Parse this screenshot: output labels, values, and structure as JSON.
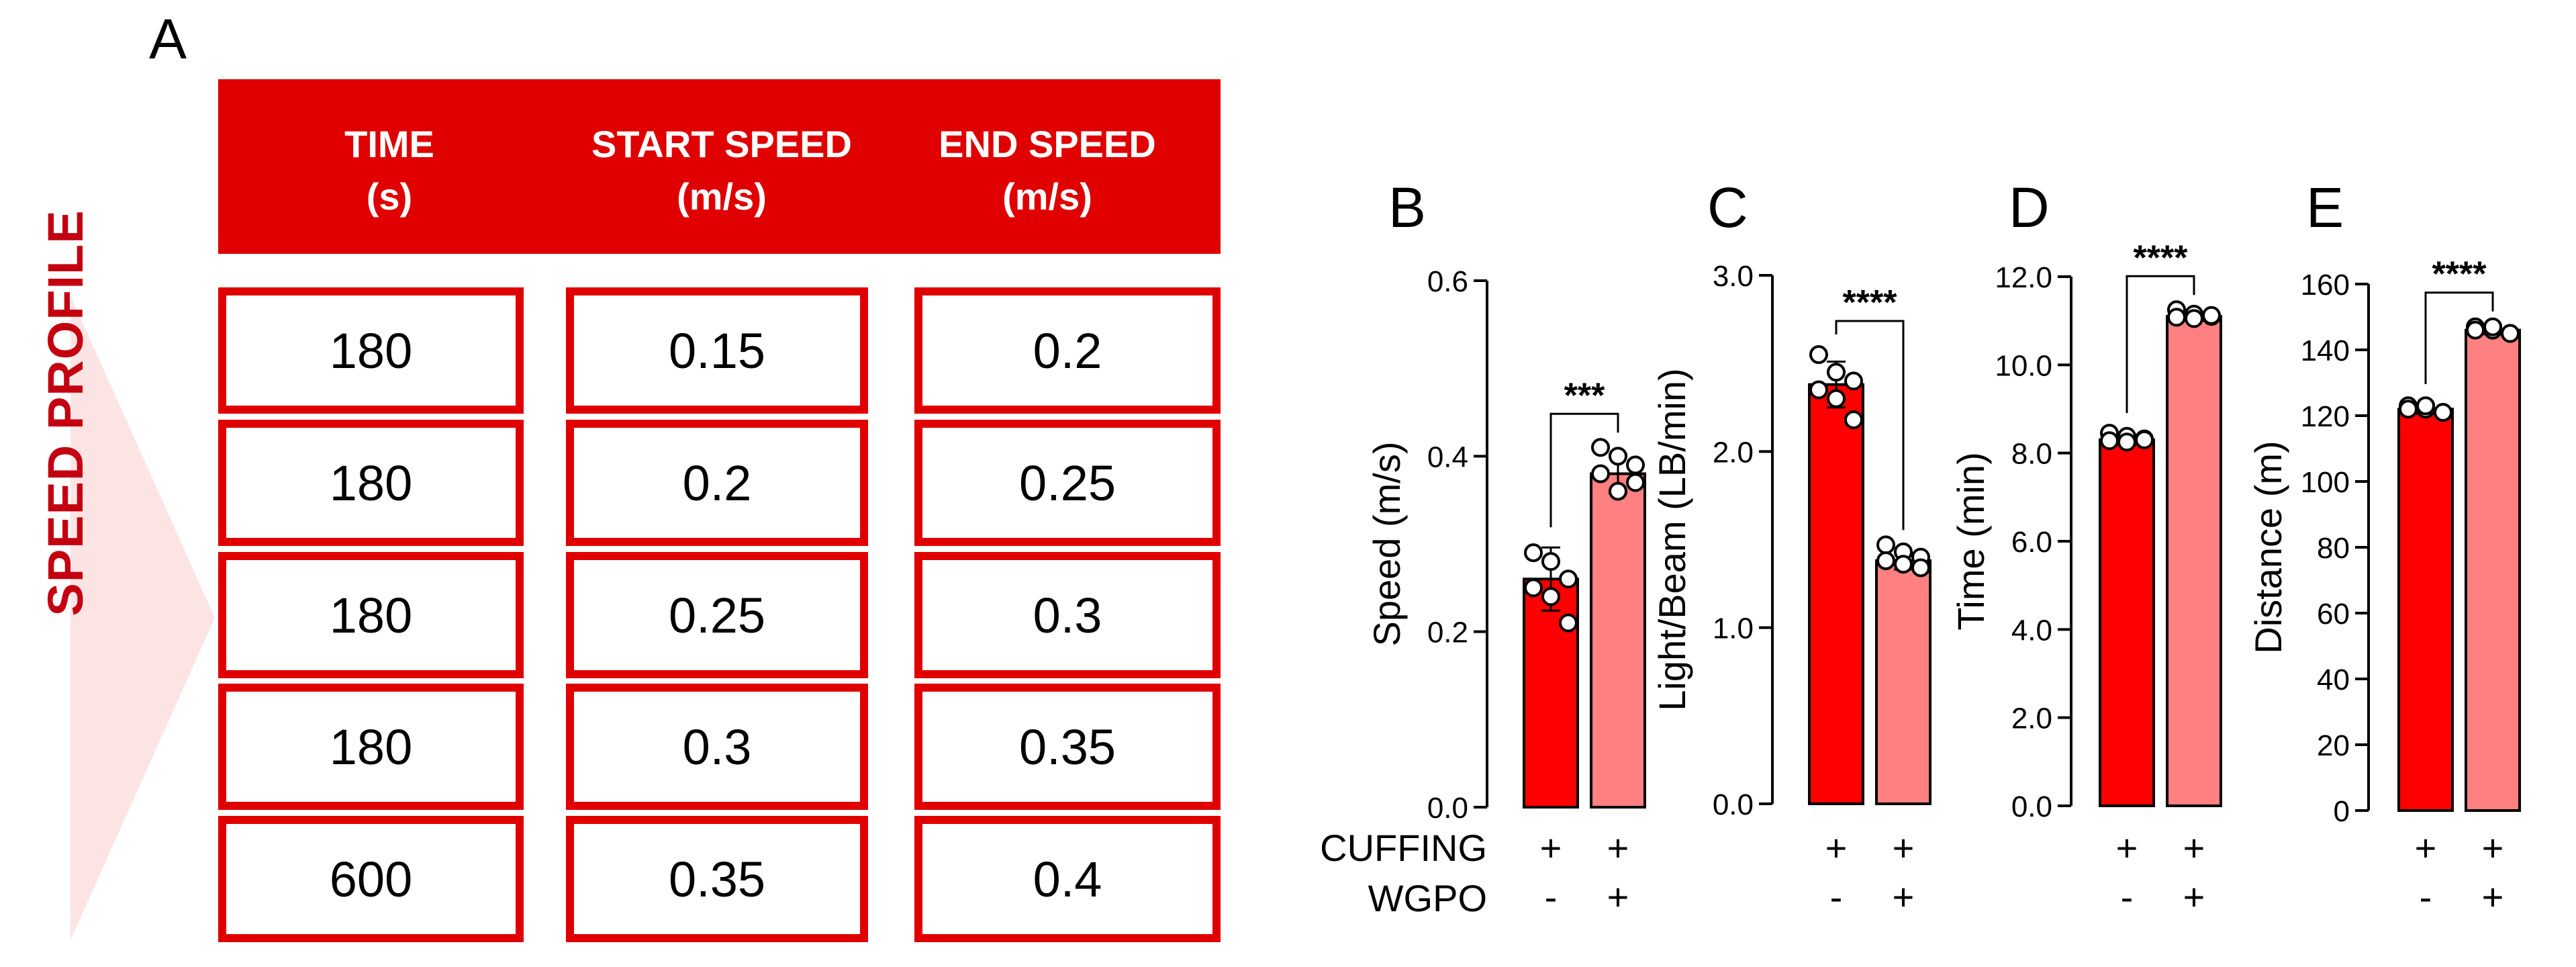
{
  "panels": {
    "a": "A",
    "b": "B",
    "c": "C",
    "d": "D",
    "e": "E"
  },
  "table": {
    "side_label": "SPEED PROFILE",
    "headers": [
      "TIME\n(s)",
      "START SPEED\n(m/s)",
      "END SPEED\n(m/s)"
    ],
    "rows": [
      [
        "180",
        "0.15",
        "0.2"
      ],
      [
        "180",
        "0.2",
        "0.25"
      ],
      [
        "180",
        "0.25",
        "0.3"
      ],
      [
        "180",
        "0.3",
        "0.35"
      ],
      [
        "600",
        "0.35",
        "0.4"
      ]
    ]
  },
  "colors": {
    "red": "#e00000",
    "dark_red": "#c40010",
    "bar_1": "#ff0000",
    "bar_2": "#ff8080",
    "triangle": "#fde4e4"
  },
  "conditions": {
    "row_labels": [
      "CUFFING",
      "WGPO"
    ],
    "cuffing": [
      "+",
      "+"
    ],
    "wgpo": [
      "-",
      "+"
    ]
  },
  "chart_data": [
    {
      "panel": "B",
      "type": "bar",
      "categories": [
        "CUFFING + / WGPO -",
        "CUFFING + / WGPO +"
      ],
      "values": [
        0.26,
        0.38
      ],
      "errors": [
        0.036,
        0.022
      ],
      "points": [
        [
          0.29,
          0.28,
          0.26,
          0.25,
          0.24,
          0.21
        ],
        [
          0.41,
          0.4,
          0.39,
          0.38,
          0.36,
          0.37
        ]
      ],
      "ylabel": "Speed (m/s)",
      "ylim": [
        0,
        0.6
      ],
      "ticks": [
        0.0,
        0.2,
        0.4,
        0.6
      ],
      "tick_labels": [
        "0.0",
        "0.2",
        "0.4",
        "0.6"
      ],
      "significance": "***"
    },
    {
      "panel": "C",
      "type": "bar",
      "categories": [
        "CUFFING + / WGPO -",
        "CUFFING + / WGPO +"
      ],
      "values": [
        2.38,
        1.38
      ],
      "errors": [
        0.13,
        0.05
      ],
      "points": [
        [
          2.55,
          2.45,
          2.4,
          2.35,
          2.3,
          2.18
        ],
        [
          1.47,
          1.43,
          1.4,
          1.38,
          1.36,
          1.34
        ]
      ],
      "ylabel": "Light/Beam (LB/min)",
      "ylim": [
        0,
        3.0
      ],
      "ticks": [
        0.0,
        1.0,
        2.0,
        3.0
      ],
      "tick_labels": [
        "0.0",
        "1.0",
        "2.0",
        "3.0"
      ],
      "significance": "****"
    },
    {
      "panel": "D",
      "type": "bar",
      "categories": [
        "CUFFING + / WGPO -",
        "CUFFING + / WGPO +"
      ],
      "values": [
        8.3,
        11.1
      ],
      "errors": [
        0.12,
        0.1
      ],
      "points": [
        [
          8.45,
          8.38,
          8.32,
          8.28,
          8.25,
          8.3
        ],
        [
          11.25,
          11.15,
          11.1,
          11.08,
          11.05,
          11.12
        ]
      ],
      "ylabel": "Time (min)",
      "ylim": [
        0,
        12.0
      ],
      "ticks": [
        0.0,
        2.0,
        4.0,
        6.0,
        8.0,
        10.0,
        12.0
      ],
      "tick_labels": [
        "0.0",
        "2.0",
        "4.0",
        "6.0",
        "8.0",
        "10.0",
        "12.0"
      ],
      "significance": "****"
    },
    {
      "panel": "E",
      "type": "bar",
      "categories": [
        "CUFFING + / WGPO -",
        "CUFFING + / WGPO +"
      ],
      "values": [
        122,
        146
      ],
      "errors": [
        1.5,
        1.2
      ],
      "points": [
        [
          123,
          122,
          121,
          122,
          123,
          121
        ],
        [
          147,
          146,
          145,
          146,
          147,
          145
        ]
      ],
      "ylabel": "Distance (m)",
      "ylim": [
        0,
        160
      ],
      "ticks": [
        0,
        20,
        40,
        60,
        80,
        100,
        120,
        140,
        160
      ],
      "tick_labels": [
        "0",
        "20",
        "40",
        "60",
        "80",
        "100",
        "120",
        "140",
        "160"
      ],
      "significance": "****"
    }
  ]
}
